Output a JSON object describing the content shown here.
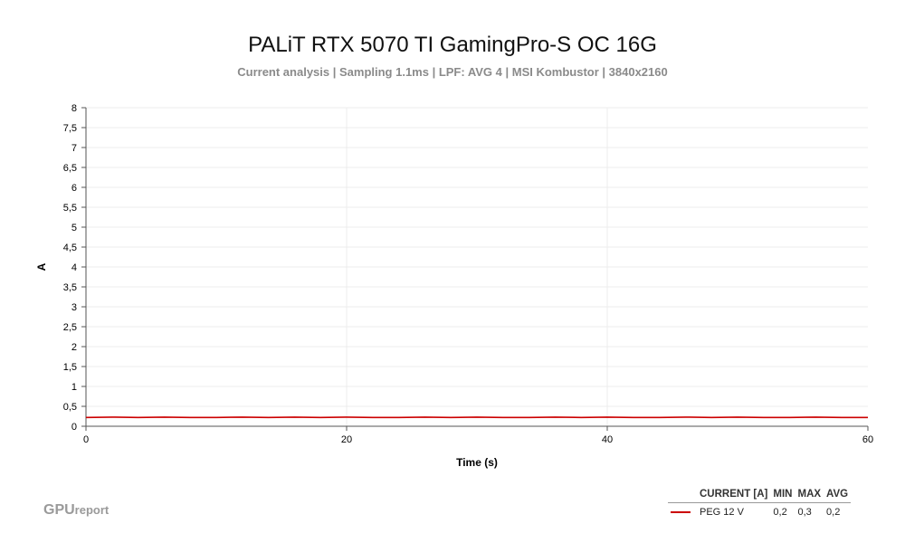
{
  "chart_data": {
    "type": "line",
    "title": "PALiT RTX 5070 TI GamingPro-S OC 16G",
    "subtitle": "Current analysis | Sampling 1.1ms | LPF: AVG 4 | MSI Kombustor | 3840x2160",
    "xlabel": "Time (s)",
    "ylabel": "A",
    "xlim": [
      0,
      60
    ],
    "ylim": [
      0,
      8
    ],
    "x_ticks": [
      "0",
      "20",
      "40",
      "60"
    ],
    "x_tick_values": [
      0,
      20,
      40,
      60
    ],
    "y_ticks": [
      "0",
      "0,5",
      "1",
      "1,5",
      "2",
      "2,5",
      "3",
      "3,5",
      "4",
      "4,5",
      "5",
      "5,5",
      "6",
      "6,5",
      "7",
      "7,5",
      "8"
    ],
    "y_tick_values": [
      0,
      0.5,
      1,
      1.5,
      2,
      2.5,
      3,
      3.5,
      4,
      4.5,
      5,
      5.5,
      6,
      6.5,
      7,
      7.5,
      8
    ],
    "grid": true,
    "legend_position": "bottom-right",
    "series": [
      {
        "name": "PEG 12 V",
        "color": "#cc0000",
        "x": [
          0,
          2,
          4,
          6,
          8,
          10,
          12,
          14,
          16,
          18,
          20,
          22,
          24,
          26,
          28,
          30,
          32,
          34,
          36,
          38,
          40,
          42,
          44,
          46,
          48,
          50,
          52,
          54,
          56,
          58,
          60
        ],
        "values": [
          0.22,
          0.23,
          0.22,
          0.23,
          0.22,
          0.22,
          0.23,
          0.22,
          0.23,
          0.22,
          0.23,
          0.22,
          0.22,
          0.23,
          0.22,
          0.23,
          0.22,
          0.22,
          0.23,
          0.22,
          0.23,
          0.22,
          0.22,
          0.23,
          0.22,
          0.23,
          0.22,
          0.22,
          0.23,
          0.22,
          0.22
        ]
      }
    ]
  },
  "legend": {
    "headers": [
      "CURRENT [A]",
      "MIN",
      "MAX",
      "AVG"
    ],
    "rows": [
      {
        "name": "PEG 12 V",
        "min": "0,2",
        "max": "0,3",
        "avg": "0,2",
        "color": "#cc0000"
      }
    ]
  },
  "watermark": {
    "gpu": "GPU",
    "report": "report"
  }
}
